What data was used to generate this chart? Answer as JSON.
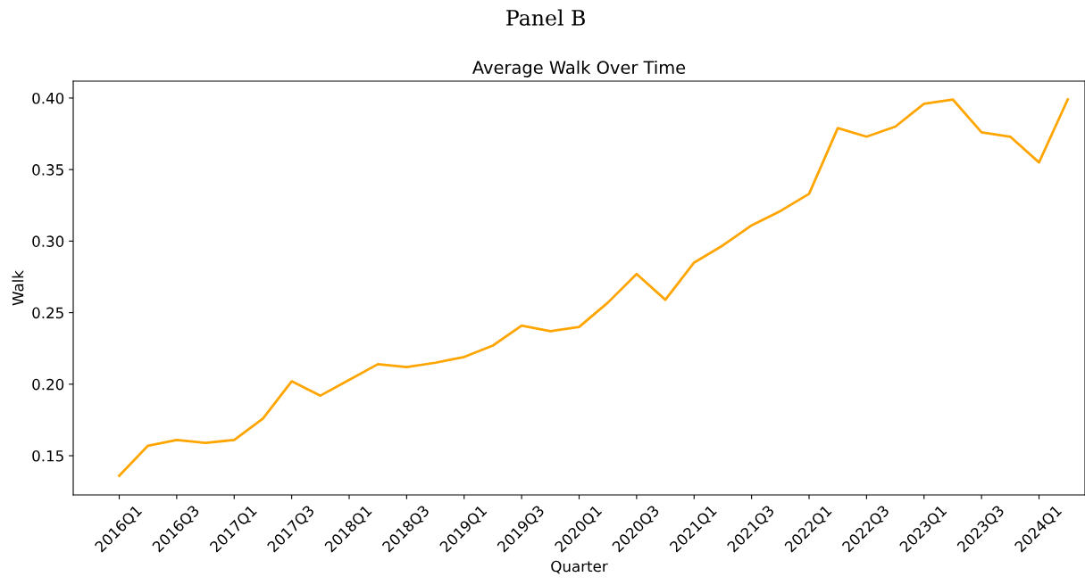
{
  "chart_data": {
    "type": "line",
    "subtitle": "Panel B",
    "title": "Average Walk Over Time",
    "xlabel": "Quarter",
    "ylabel": "Walk",
    "categories": [
      "2016Q1",
      null,
      "2016Q3",
      null,
      "2017Q1",
      null,
      "2017Q3",
      null,
      "2018Q1",
      null,
      "2018Q3",
      null,
      "2019Q1",
      null,
      "2019Q3",
      null,
      "2020Q1",
      null,
      "2020Q3",
      null,
      "2021Q1",
      null,
      "2021Q3",
      null,
      "2022Q1",
      null,
      "2022Q3",
      null,
      "2023Q1",
      null,
      "2023Q3",
      null,
      "2024Q1",
      null
    ],
    "series": [
      {
        "color": "#ffa500",
        "values": [
          0.136,
          0.157,
          0.161,
          0.159,
          0.161,
          0.176,
          0.202,
          0.192,
          0.203,
          0.214,
          0.212,
          0.215,
          0.219,
          0.227,
          0.241,
          0.237,
          0.24,
          0.257,
          0.277,
          0.259,
          0.285,
          0.297,
          0.311,
          0.321,
          0.333,
          0.379,
          0.373,
          0.38,
          0.396,
          0.399,
          0.376,
          0.373,
          0.355,
          0.399
        ]
      }
    ],
    "ylim": [
      0.1226,
      0.4118
    ],
    "yticks": [
      {
        "value": 0.15,
        "label": "0.15"
      },
      {
        "value": 0.2,
        "label": "0.20"
      },
      {
        "value": 0.25,
        "label": "0.25"
      },
      {
        "value": 0.3,
        "label": "0.30"
      },
      {
        "value": 0.35,
        "label": "0.35"
      },
      {
        "value": 0.4,
        "label": "0.40"
      }
    ],
    "grid": false,
    "legend": false
  }
}
